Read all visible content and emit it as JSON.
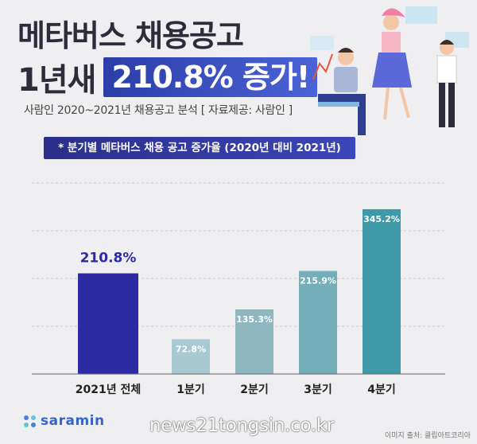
{
  "header": {
    "title_line1": "메타버스 채용공고",
    "title_line2_a": "1년새",
    "title_line2_b": "210.8% 증가!",
    "subtitle": "사람인 2020~2021년 채용공고 분석 [ 자료제공: 사람인 ]",
    "banner": "* 분기별 메타버스 채용 공고 증가율 (2020년 대비 2021년)"
  },
  "chart_data": {
    "type": "bar",
    "title": "* 분기별 메타버스 채용 공고 증가율 (2020년 대비 2021년)",
    "categories": [
      "2021년 전체",
      "1분기",
      "2분기",
      "3분기",
      "4분기"
    ],
    "values": [
      210.8,
      72.8,
      135.3,
      215.9,
      345.2
    ],
    "labels": [
      "210.8%",
      "72.8%",
      "135.3%",
      "215.9%",
      "345.2%"
    ],
    "unit": "%",
    "ylim": [
      0,
      400
    ],
    "grid": true,
    "colors": [
      "#2e2aa3",
      "#a8c9cf",
      "#8fb7bf",
      "#73aeb9",
      "#3e9aa6"
    ]
  },
  "footer": {
    "logo": "saramin",
    "watermark": "news21tongsin.co.kr",
    "credit": "이미지 출처: 클립아트코리아"
  },
  "icons": [
    "saramin-logo-icon",
    "business-people-illustration"
  ]
}
